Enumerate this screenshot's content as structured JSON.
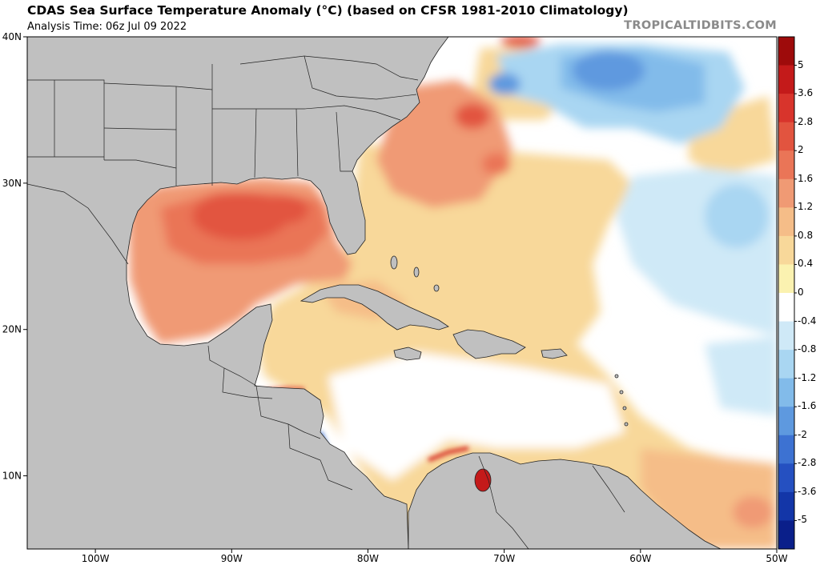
{
  "header": {
    "title": "CDAS Sea Surface Temperature Anomaly (°C) (based on CFSR 1981-2010 Climatology)",
    "analysis_time": "Analysis Time: 06z Jul 09 2022",
    "brand": "TROPICALTIDBITS.COM"
  },
  "map": {
    "lon_range": [
      -105,
      -50
    ],
    "lat_range": [
      5,
      40
    ],
    "x_ticks": [
      "100W",
      "90W",
      "80W",
      "70W",
      "60W",
      "50W"
    ],
    "y_ticks": [
      "40N",
      "30N",
      "20N",
      "10N"
    ],
    "land_color": "#c0c0c0",
    "ocean_color": "#ffffff"
  },
  "colorbar": {
    "labels": [
      "5",
      "3.6",
      "2.8",
      "2",
      "1.6",
      "1.2",
      "0.8",
      "0.4",
      "0",
      "-0.4",
      "-0.8",
      "-1.2",
      "-1.6",
      "-2",
      "-2.8",
      "-3.6",
      "-5"
    ],
    "colors": [
      "#9e0b0b",
      "#c41a1a",
      "#d8342c",
      "#e2543f",
      "#ea7557",
      "#f09a74",
      "#f5bd88",
      "#f8d89a",
      "#fbf2b0",
      "#ffffff",
      "#cfe9f7",
      "#a9d6f2",
      "#82bbea",
      "#5e99df",
      "#3d72d2",
      "#2550c1",
      "#1336a8",
      "#0a1f8a"
    ]
  }
}
